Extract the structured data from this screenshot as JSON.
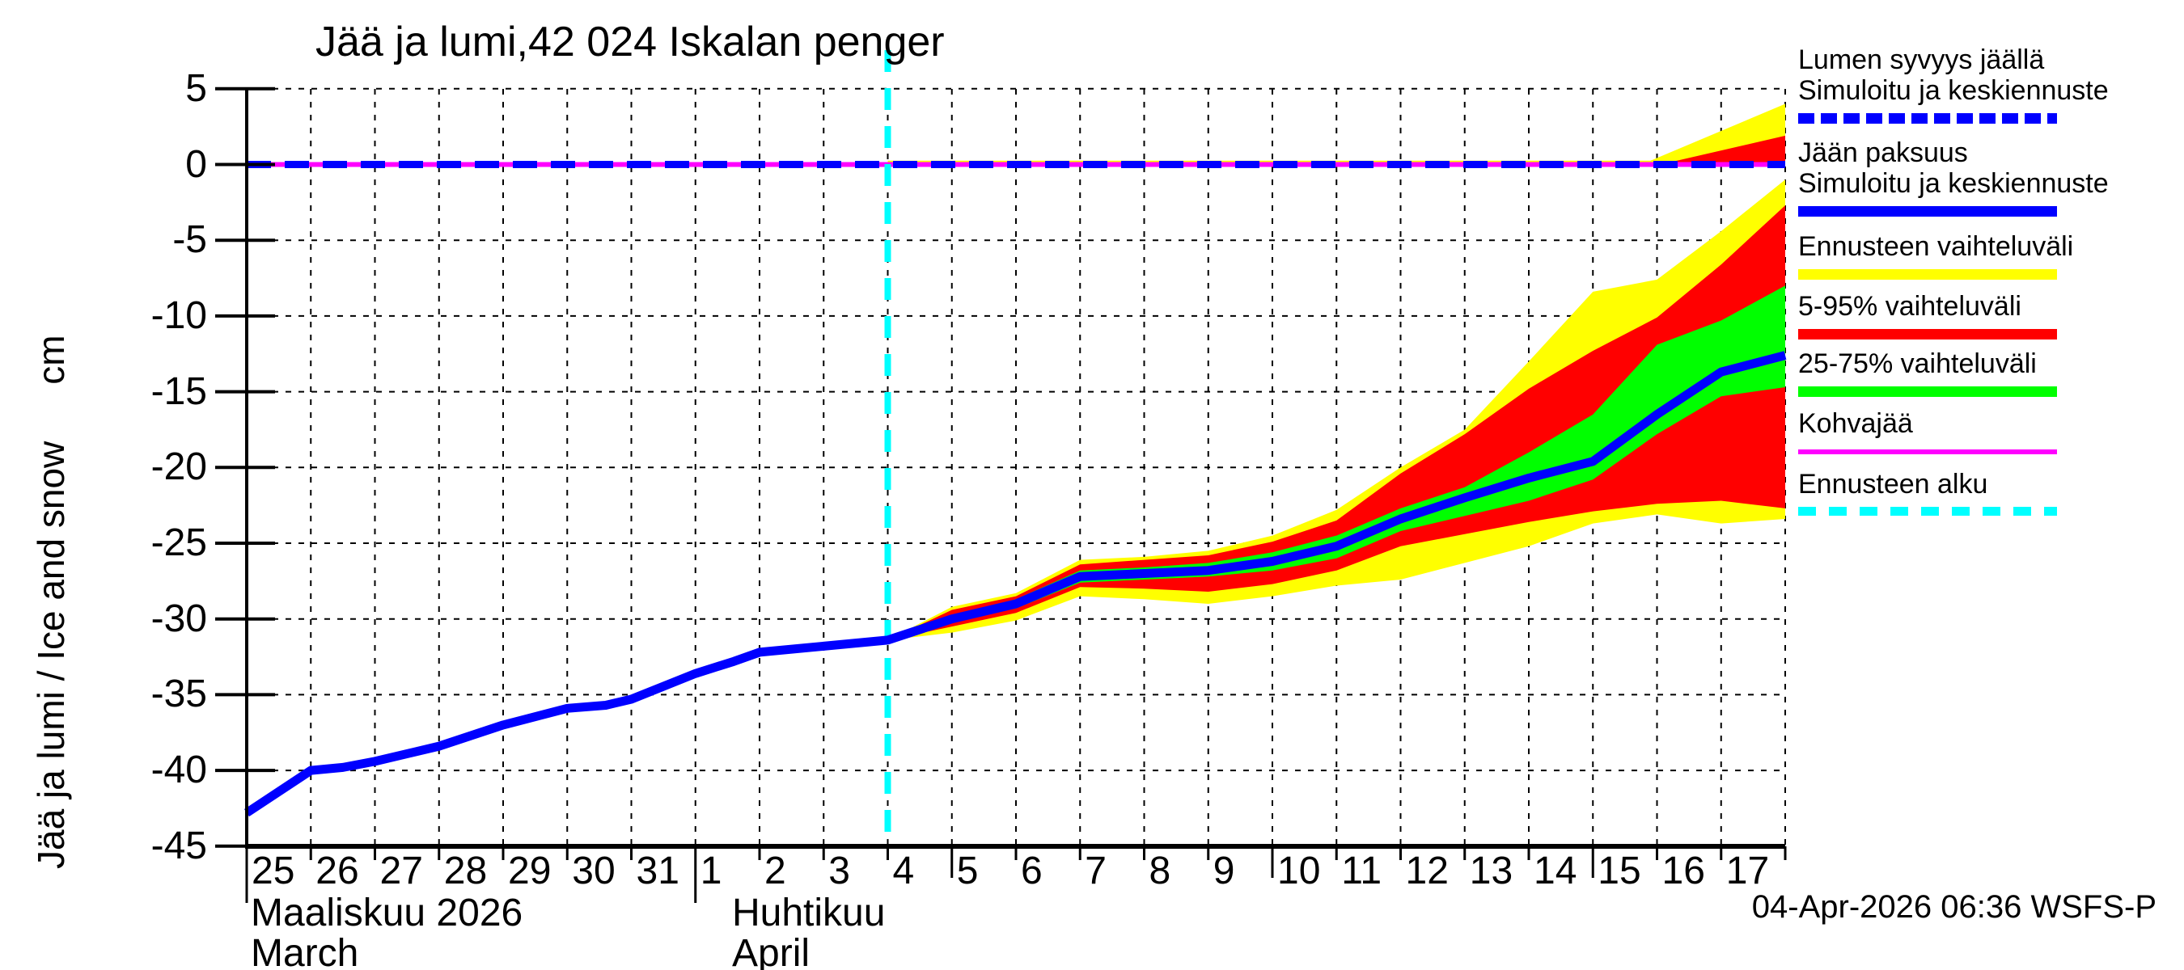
{
  "title": "Jää ja lumi,42 024 Iskalan penger",
  "footer": {
    "timestamp": "04-Apr-2026 06:36 WSFS-P"
  },
  "y_axis": {
    "label": "Jää ja lumi / Ice and snow",
    "unit": "cm",
    "ticks": [
      5,
      0,
      -5,
      -10,
      -15,
      -20,
      -25,
      -30,
      -35,
      -40,
      -45
    ]
  },
  "x_axis": {
    "month_1_fi": "Maaliskuu 2026",
    "month_1_en": "March",
    "month_2_fi": "Huhtikuu",
    "month_2_en": "April",
    "days": [
      {
        "label": "25",
        "d": 0,
        "tick": "month"
      },
      {
        "label": "26",
        "d": 1,
        "tick": "minor"
      },
      {
        "label": "27",
        "d": 2,
        "tick": "minor"
      },
      {
        "label": "28",
        "d": 3,
        "tick": "minor"
      },
      {
        "label": "29",
        "d": 4,
        "tick": "minor"
      },
      {
        "label": "30",
        "d": 5,
        "tick": "minor"
      },
      {
        "label": "31",
        "d": 6,
        "tick": "minor"
      },
      {
        "label": "1",
        "d": 7,
        "tick": "month"
      },
      {
        "label": "2",
        "d": 8,
        "tick": "minor"
      },
      {
        "label": "3",
        "d": 9,
        "tick": "minor"
      },
      {
        "label": "4",
        "d": 10,
        "tick": "minor"
      },
      {
        "label": "5",
        "d": 11,
        "tick": "major"
      },
      {
        "label": "6",
        "d": 12,
        "tick": "minor"
      },
      {
        "label": "7",
        "d": 13,
        "tick": "minor"
      },
      {
        "label": "8",
        "d": 14,
        "tick": "minor"
      },
      {
        "label": "9",
        "d": 15,
        "tick": "minor"
      },
      {
        "label": "10",
        "d": 16,
        "tick": "major"
      },
      {
        "label": "11",
        "d": 17,
        "tick": "minor"
      },
      {
        "label": "12",
        "d": 18,
        "tick": "minor"
      },
      {
        "label": "13",
        "d": 19,
        "tick": "minor"
      },
      {
        "label": "14",
        "d": 20,
        "tick": "minor"
      },
      {
        "label": "15",
        "d": 21,
        "tick": "major"
      },
      {
        "label": "16",
        "d": 22,
        "tick": "minor"
      },
      {
        "label": "17",
        "d": 23,
        "tick": "minor"
      }
    ]
  },
  "colors": {
    "simulated": "#0000ff",
    "forecast_range": "#ffff00",
    "range_5_95": "#ff0000",
    "range_25_75": "#00ff00",
    "kohvajaa": "#ff00ff",
    "forecast_start": "#00ffff",
    "grid": "#000000",
    "background": "#ffffff"
  },
  "legend": {
    "items": [
      {
        "line1": "Lumen syvyys jäällä",
        "line2": "Simuloitu ja keskiennuste",
        "swatch": "blue-dashed-line"
      },
      {
        "line1": "Jään paksuus",
        "line2": "Simuloitu ja keskiennuste",
        "swatch": "blue-solid-line"
      },
      {
        "line1": "Ennusteen vaihteluväli",
        "line2": "",
        "swatch": "yellow-band"
      },
      {
        "line1": "5-95% vaihteluväli",
        "line2": "",
        "swatch": "red-band"
      },
      {
        "line1": "25-75% vaihteluväli",
        "line2": "",
        "swatch": "green-band"
      },
      {
        "line1": "Kohvajää",
        "line2": "",
        "swatch": "magenta-line"
      },
      {
        "line1": "Ennusteen alku",
        "line2": "",
        "swatch": "cyan-dashed-line"
      }
    ]
  },
  "chart_data": {
    "type": "line",
    "title": "Jää ja lumi,42 024 Iskalan penger",
    "ylabel": "Jää ja lumi / Ice and snow (cm)",
    "ylim": [
      -45,
      5
    ],
    "x_unit": "days since 2026-03-25",
    "xlim": [
      0,
      24
    ],
    "grid": true,
    "legend_position": "right",
    "forecast_start_day": 10,
    "forecast_start_date": "2026-04-04",
    "history_ice_thickness": {
      "name": "Jään paksuus - Simuloitu",
      "x": [
        0,
        1,
        1.5,
        2,
        3,
        4,
        5,
        5.6,
        6,
        7,
        7.6,
        8,
        9,
        10
      ],
      "y": [
        -42.8,
        -40.0,
        -39.8,
        -39.4,
        -38.4,
        -37.0,
        -35.9,
        -35.7,
        -35.3,
        -33.6,
        -32.8,
        -32.2,
        -31.8,
        -31.4
      ]
    },
    "forecast_ice_thickness": {
      "dates": [
        "Apr 4",
        "Apr 5",
        "Apr 6",
        "Apr 7",
        "Apr 8",
        "Apr 9",
        "Apr 10",
        "Apr 11",
        "Apr 12",
        "Apr 13",
        "Apr 14",
        "Apr 15",
        "Apr 16",
        "Apr 17",
        "Apr 18"
      ],
      "x": [
        10,
        11,
        12,
        13,
        14,
        15,
        16,
        17,
        18,
        19,
        20,
        21,
        22,
        23,
        24
      ],
      "median": [
        -31.4,
        -30.0,
        -29.0,
        -27.2,
        -27.0,
        -26.8,
        -26.2,
        -25.2,
        -23.4,
        -22.0,
        -20.7,
        -19.6,
        -16.5,
        -13.7,
        -12.6
      ],
      "p75": [
        -31.4,
        -29.8,
        -28.7,
        -26.8,
        -26.6,
        -26.3,
        -25.6,
        -24.5,
        -22.7,
        -21.3,
        -19.0,
        -16.5,
        -11.9,
        -10.3,
        -8.0
      ],
      "p25": [
        -31.4,
        -30.2,
        -29.3,
        -27.6,
        -27.4,
        -27.2,
        -26.8,
        -26.0,
        -24.2,
        -23.2,
        -22.2,
        -20.8,
        -17.8,
        -15.3,
        -14.7
      ],
      "p95": [
        -31.4,
        -29.4,
        -28.5,
        -26.4,
        -26.1,
        -25.8,
        -24.9,
        -23.5,
        -20.4,
        -17.8,
        -14.8,
        -12.3,
        -10.1,
        -6.6,
        -2.7
      ],
      "p5": [
        -31.4,
        -30.5,
        -29.6,
        -27.9,
        -28.0,
        -28.2,
        -27.7,
        -26.8,
        -25.2,
        -24.4,
        -23.6,
        -22.9,
        -22.4,
        -22.2,
        -22.7
      ],
      "max": [
        -31.4,
        -29.2,
        -28.3,
        -26.1,
        -25.9,
        -25.5,
        -24.5,
        -22.8,
        -20.0,
        -17.5,
        -13.0,
        -8.4,
        -7.6,
        -4.4,
        -1.0
      ],
      "min": [
        -31.4,
        -30.9,
        -30.1,
        -28.5,
        -28.7,
        -29.0,
        -28.5,
        -27.8,
        -27.4,
        -26.3,
        -25.2,
        -23.7,
        -23.1,
        -23.7,
        -23.4
      ]
    },
    "snow_depth_on_ice": {
      "name": "Lumen syvyys jäällä - Simuloitu ja keskiennuste",
      "median_x": [
        0,
        24
      ],
      "median": [
        0,
        0
      ],
      "forecast_max_x": [
        10,
        21.9,
        24
      ],
      "forecast_max": [
        0.25,
        0.25,
        4.0
      ],
      "forecast_p95_x": [
        10,
        22.1,
        24
      ],
      "forecast_p95": [
        0.05,
        0.05,
        1.9
      ]
    },
    "kohvajaa_line": {
      "x": [
        0,
        24
      ],
      "y": [
        0,
        0
      ]
    }
  }
}
